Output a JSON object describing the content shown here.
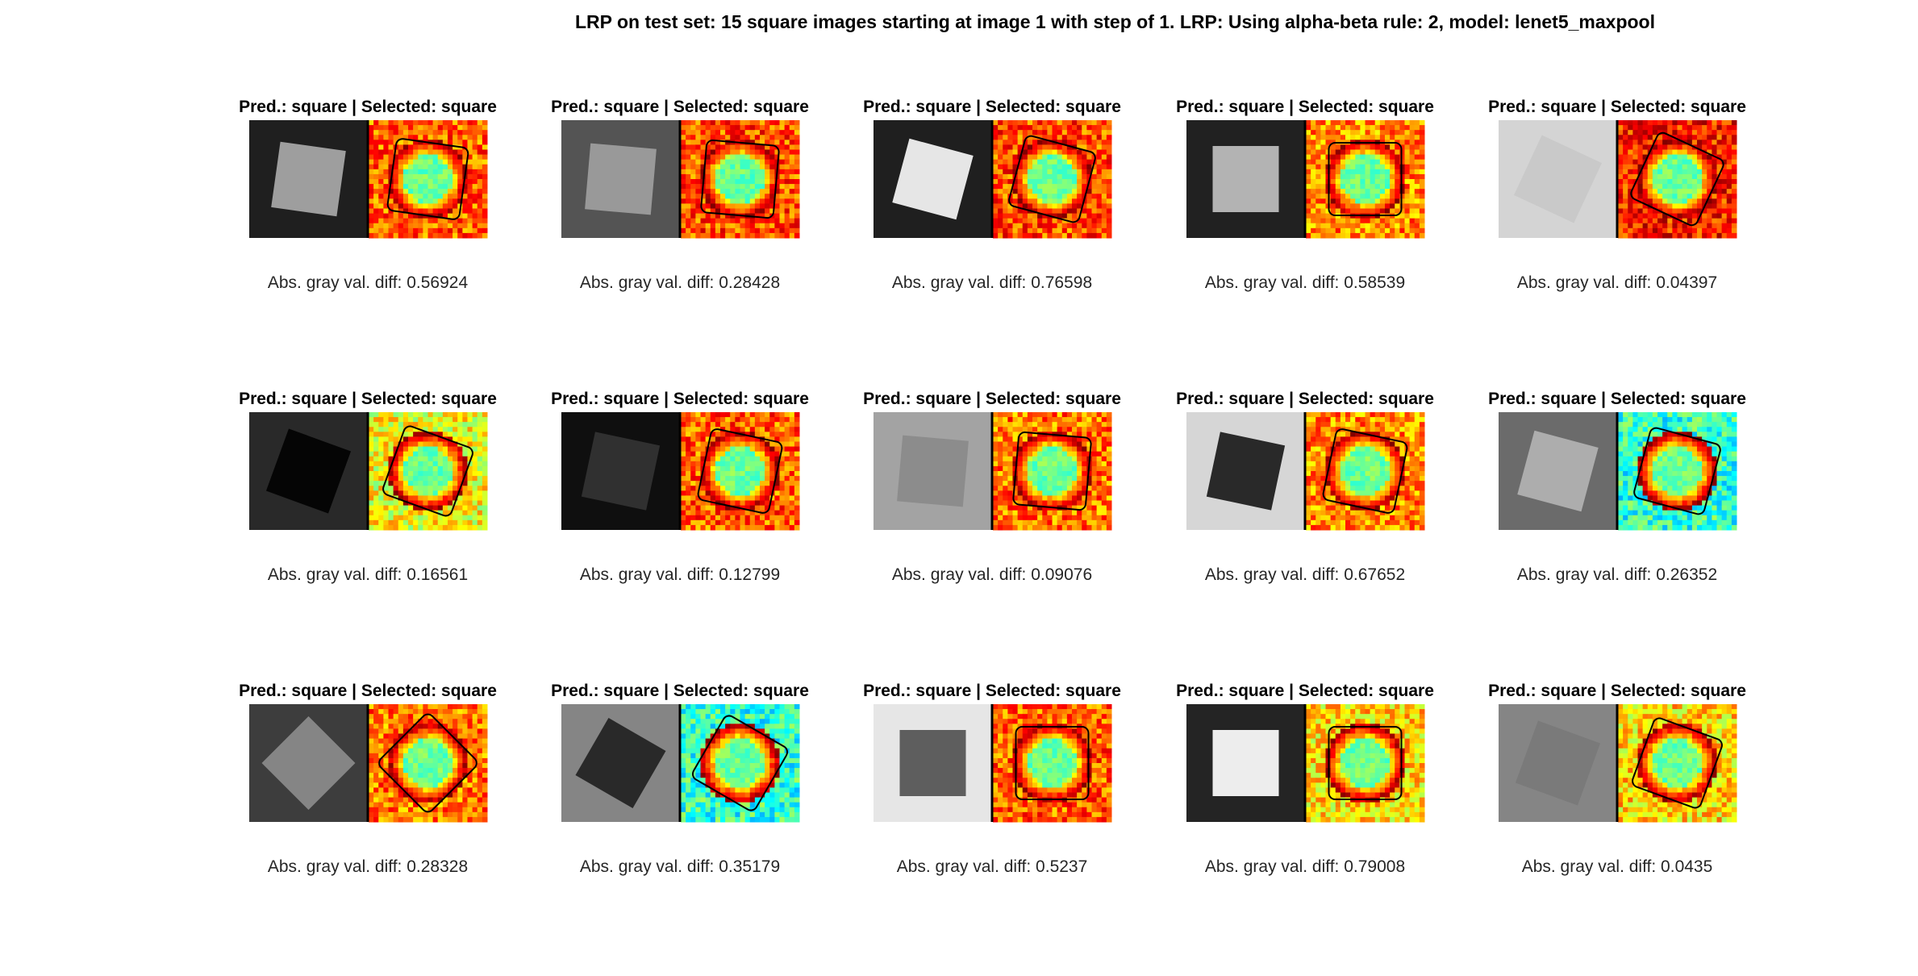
{
  "title": "LRP on test set: 15 square images starting at image 1 with step of 1. LRP: Using alpha-beta rule: 2, model: lenet5_maxpool",
  "panels": [
    {
      "title": "Pred.: square | Selected: square",
      "caption": "Abs. gray val. diff: 0.56924"
    },
    {
      "title": "Pred.: square | Selected: square",
      "caption": "Abs. gray val. diff: 0.28428"
    },
    {
      "title": "Pred.: square | Selected: square",
      "caption": "Abs. gray val. diff: 0.76598"
    },
    {
      "title": "Pred.: square | Selected: square",
      "caption": "Abs. gray val. diff: 0.58539"
    },
    {
      "title": "Pred.: square | Selected: square",
      "caption": "Abs. gray val. diff: 0.04397"
    },
    {
      "title": "Pred.: square | Selected: square",
      "caption": "Abs. gray val. diff: 0.16561"
    },
    {
      "title": "Pred.: square | Selected: square",
      "caption": "Abs. gray val. diff: 0.12799"
    },
    {
      "title": "Pred.: square | Selected: square",
      "caption": "Abs. gray val. diff: 0.09076"
    },
    {
      "title": "Pred.: square | Selected: square",
      "caption": "Abs. gray val. diff: 0.67652"
    },
    {
      "title": "Pred.: square | Selected: square",
      "caption": "Abs. gray val. diff: 0.26352"
    },
    {
      "title": "Pred.: square | Selected: square",
      "caption": "Abs. gray val. diff: 0.28328"
    },
    {
      "title": "Pred.: square | Selected: square",
      "caption": "Abs. gray val. diff: 0.35179"
    },
    {
      "title": "Pred.: square | Selected: square",
      "caption": "Abs. gray val. diff: 0.5237"
    },
    {
      "title": "Pred.: square | Selected: square",
      "caption": "Abs. gray val. diff: 0.79008"
    },
    {
      "title": "Pred.: square | Selected: square",
      "caption": "Abs. gray val. diff: 0.0435"
    }
  ]
}
